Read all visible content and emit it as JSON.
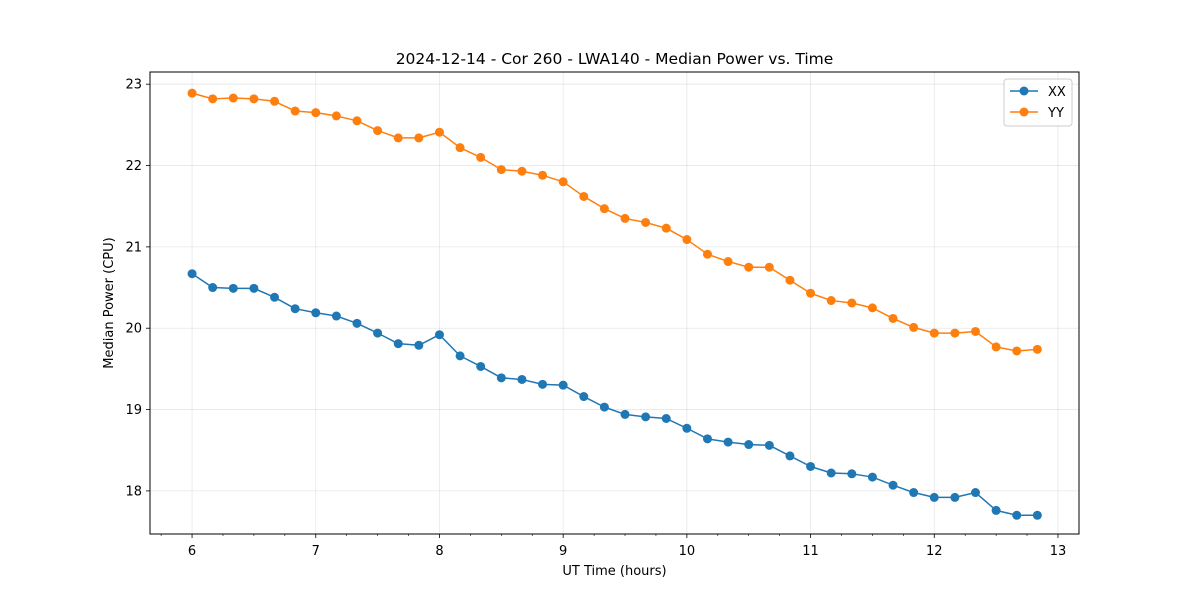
{
  "chart_data": {
    "type": "line",
    "title": "2024-12-14 - Cor 260 - LWA140 - Median Power vs. Time",
    "xlabel": "UT Time (hours)",
    "ylabel": "Median Power (CPU)",
    "xlim": [
      5.66,
      13.17
    ],
    "ylim": [
      17.47,
      23.15
    ],
    "xticks": [
      6,
      7,
      8,
      9,
      10,
      11,
      12,
      13
    ],
    "xtick_labels": [
      "6",
      "7",
      "8",
      "9",
      "10",
      "11",
      "12",
      "13"
    ],
    "xminor_step": 0.25,
    "yticks": [
      18,
      19,
      20,
      21,
      22,
      23
    ],
    "ytick_labels": [
      "18",
      "19",
      "20",
      "21",
      "22",
      "23"
    ],
    "grid": true,
    "legend_position": "top-right",
    "x": [
      6.0,
      6.1667,
      6.3333,
      6.5,
      6.6667,
      6.8333,
      7.0,
      7.1667,
      7.3333,
      7.5,
      7.6667,
      7.8333,
      8.0,
      8.1667,
      8.3333,
      8.5,
      8.6667,
      8.8333,
      9.0,
      9.1667,
      9.3333,
      9.5,
      9.6667,
      9.8333,
      10.0,
      10.1667,
      10.3333,
      10.5,
      10.6667,
      10.8333,
      11.0,
      11.1667,
      11.3333,
      11.5,
      11.6667,
      11.8333,
      12.0,
      12.1667,
      12.3333,
      12.5,
      12.6667,
      12.8333
    ],
    "series": [
      {
        "name": "XX",
        "color": "#1f77b4",
        "values": [
          20.67,
          20.5,
          20.49,
          20.49,
          20.38,
          20.24,
          20.19,
          20.15,
          20.06,
          19.94,
          19.81,
          19.79,
          19.92,
          19.66,
          19.53,
          19.39,
          19.37,
          19.31,
          19.3,
          19.16,
          19.03,
          18.94,
          18.91,
          18.89,
          18.77,
          18.64,
          18.6,
          18.57,
          18.56,
          18.43,
          18.3,
          18.22,
          18.21,
          18.17,
          18.07,
          17.98,
          17.92,
          17.92,
          17.98,
          17.76,
          17.7,
          17.7
        ]
      },
      {
        "name": "YY",
        "color": "#ff7f0e",
        "values": [
          22.89,
          22.82,
          22.83,
          22.82,
          22.79,
          22.67,
          22.65,
          22.61,
          22.55,
          22.43,
          22.34,
          22.34,
          22.41,
          22.22,
          22.1,
          21.95,
          21.93,
          21.88,
          21.8,
          21.62,
          21.47,
          21.35,
          21.3,
          21.23,
          21.09,
          20.91,
          20.82,
          20.75,
          20.75,
          20.59,
          20.43,
          20.34,
          20.31,
          20.25,
          20.12,
          20.01,
          19.94,
          19.94,
          19.96,
          19.77,
          19.72,
          19.74
        ]
      }
    ]
  }
}
